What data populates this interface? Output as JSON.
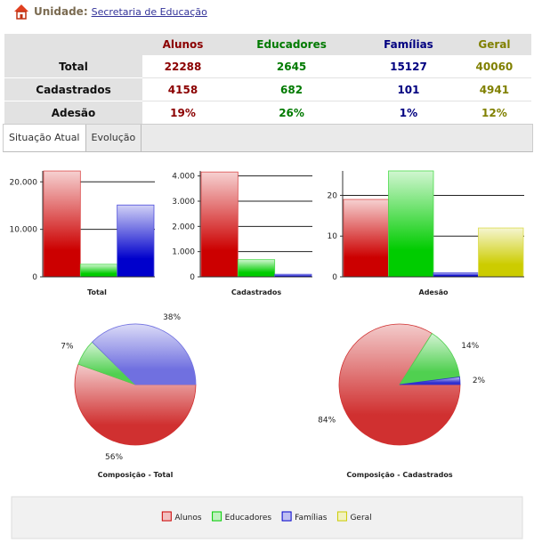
{
  "header": {
    "label": "Unidade:",
    "link": "Secretaria de Educação"
  },
  "table": {
    "columns": [
      "Alunos",
      "Educadores",
      "Famílias",
      "Geral"
    ],
    "rows": [
      [
        "Total",
        "22288",
        "2645",
        "15127",
        "40060"
      ],
      [
        "Cadastrados",
        "4158",
        "682",
        "101",
        "4941"
      ],
      [
        "Adesão",
        "19%",
        "26%",
        "1%",
        "12%"
      ]
    ]
  },
  "tabs": [
    "Situação Atual",
    "Evolução"
  ],
  "chart_data": [
    {
      "type": "bar",
      "x_label": "Total",
      "values": [
        22288,
        2645,
        15127
      ],
      "colors": [
        "#cc0000",
        "#00cc00",
        "#0000cc"
      ],
      "ylim": [
        0,
        22300
      ],
      "yticks": [
        0,
        {
          "value": 10000,
          "label": "10.000"
        },
        {
          "value": 20000,
          "label": "20.000"
        }
      ],
      "grid": true
    },
    {
      "type": "bar",
      "x_label": "Cadastrados",
      "values": [
        4158,
        682,
        101
      ],
      "colors": [
        "#cc0000",
        "#00cc00",
        "#0000cc"
      ],
      "ylim": [
        0,
        4200
      ],
      "yticks": [
        0,
        {
          "value": 1000,
          "label": "1.000"
        },
        {
          "value": 2000,
          "label": "2.000"
        },
        {
          "value": 3000,
          "label": "3.000"
        },
        {
          "value": 4000,
          "label": "4.000"
        }
      ],
      "grid": true
    },
    {
      "type": "bar",
      "x_label": "Adesão",
      "values": [
        19,
        26,
        1,
        12
      ],
      "colors": [
        "#cc0000",
        "#00cc00",
        "#0000cc",
        "#cccc00"
      ],
      "ylim": [
        0,
        26
      ],
      "yticks": [
        0,
        10,
        20
      ],
      "grid": true
    },
    {
      "type": "pie",
      "title": "Composição - Total",
      "values": [
        56,
        7,
        38
      ],
      "value_labels": [
        "56%",
        "7%",
        "38%"
      ],
      "colors": [
        "#d03030",
        "#50d050",
        "#7070e0"
      ]
    },
    {
      "type": "pie",
      "title": "Composição - Cadastrados",
      "values": [
        84,
        14,
        2
      ],
      "value_labels": [
        "84%",
        "14%",
        "2%"
      ],
      "colors": [
        "#d03030",
        "#50d050",
        "#3030d0"
      ]
    }
  ],
  "legend": {
    "items": [
      {
        "name": "Alunos",
        "color": "#cc0000"
      },
      {
        "name": "Educadores",
        "color": "#00cc00"
      },
      {
        "name": "Famílias",
        "color": "#0000cc"
      },
      {
        "name": "Geral",
        "color": "#cccc00"
      }
    ]
  }
}
